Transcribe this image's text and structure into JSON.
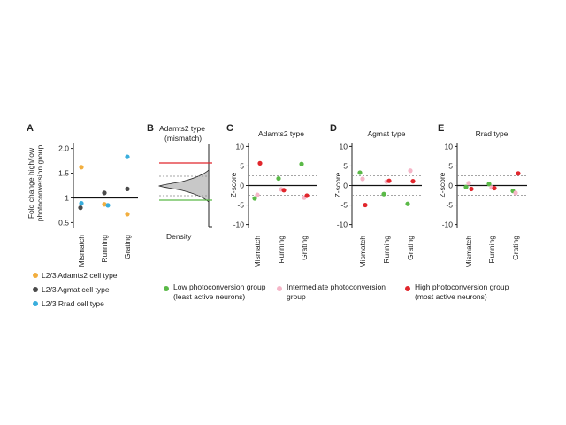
{
  "panels": {
    "A": {
      "letter": "A"
    },
    "B": {
      "letter": "B"
    },
    "C": {
      "letter": "C"
    },
    "D": {
      "letter": "D"
    },
    "E": {
      "letter": "E"
    }
  },
  "colors": {
    "adamts2": "#f2ae3e",
    "agmat": "#4a4a4a",
    "rrad": "#3aaedd",
    "low": "#5ab947",
    "intermediate": "#f5b6c8",
    "high": "#e1262c",
    "density_fill": "#c8c8c8"
  },
  "panel_b": {
    "title_line1": "Adamts2 type",
    "title_line2": "(mismatch)",
    "xlabel": "Density"
  },
  "legend_a": [
    {
      "label": "L2/3 Adamts2 cell type",
      "color_key": "adamts2"
    },
    {
      "label": "L2/3 Agmat cell type",
      "color_key": "agmat"
    },
    {
      "label": "L2/3 Rrad cell type",
      "color_key": "rrad"
    }
  ],
  "legend_groups": [
    {
      "line1": "Low photoconversion group",
      "line2": "(least active neurons)",
      "color_key": "low"
    },
    {
      "line1": "Intermediate photoconversion",
      "line2": "group",
      "color_key": "intermediate"
    },
    {
      "line1": "High photoconversion group",
      "line2": "(most active neurons)",
      "color_key": "high"
    }
  ],
  "chart_data": [
    {
      "id": "A",
      "type": "scatter",
      "title": "",
      "ylabel_line1": "Fold change high/low",
      "ylabel_line2": "photoconversion group",
      "categories": [
        "Mismatch",
        "Running",
        "Grating"
      ],
      "ylim": [
        0.4,
        2.1
      ],
      "yticks": [
        "0.5",
        "1",
        "1.5",
        "2.0"
      ],
      "reference_line": 1,
      "series": [
        {
          "name": "L2/3 Adamts2 cell type",
          "color_key": "adamts2",
          "values": [
            1.62,
            0.87,
            0.67
          ]
        },
        {
          "name": "L2/3 Agmat cell type",
          "color_key": "agmat",
          "values": [
            0.8,
            1.1,
            1.18
          ]
        },
        {
          "name": "L2/3 Rrad cell type",
          "color_key": "rrad",
          "values": [
            0.89,
            0.85,
            1.83
          ]
        }
      ]
    },
    {
      "id": "C",
      "type": "scatter",
      "title": "Adamts2 type",
      "ylabel": "Z-score",
      "categories": [
        "Mismatch",
        "Running",
        "Grating"
      ],
      "ylim": [
        -11,
        11
      ],
      "yticks": [
        "-10",
        "-5",
        "0",
        "5",
        "10"
      ],
      "dashed_lines": [
        2.5,
        -2.5
      ],
      "series": [
        {
          "name": "Low photoconversion group",
          "color_key": "low",
          "values": [
            -3.3,
            1.8,
            5.5
          ]
        },
        {
          "name": "Intermediate photoconversion group",
          "color_key": "intermediate",
          "values": [
            -2.4,
            -1.0,
            -3.1
          ]
        },
        {
          "name": "High photoconversion group",
          "color_key": "high",
          "values": [
            5.7,
            -1.2,
            -2.6
          ]
        }
      ]
    },
    {
      "id": "D",
      "type": "scatter",
      "title": "Agmat type",
      "ylabel": "Z-score",
      "categories": [
        "Mismatch",
        "Running",
        "Grating"
      ],
      "ylim": [
        -11,
        11
      ],
      "yticks": [
        "-10",
        "-5",
        "0",
        "5",
        "10"
      ],
      "dashed_lines": [
        2.5,
        -2.5
      ],
      "series": [
        {
          "name": "Low photoconversion group",
          "color_key": "low",
          "values": [
            3.3,
            -2.2,
            -4.7
          ]
        },
        {
          "name": "Intermediate photoconversion group",
          "color_key": "intermediate",
          "values": [
            1.7,
            1.0,
            3.8
          ]
        },
        {
          "name": "High photoconversion group",
          "color_key": "high",
          "values": [
            -5.0,
            1.2,
            1.1
          ]
        }
      ]
    },
    {
      "id": "E",
      "type": "scatter",
      "title": "Rrad type",
      "ylabel": "Z-score",
      "categories": [
        "Mismatch",
        "Running",
        "Grating"
      ],
      "ylim": [
        -11,
        11
      ],
      "yticks": [
        "-10",
        "-5",
        "0",
        "5",
        "10"
      ],
      "dashed_lines": [
        2.5,
        -2.5
      ],
      "series": [
        {
          "name": "Low photoconversion group",
          "color_key": "low",
          "values": [
            -0.4,
            0.4,
            -1.4
          ]
        },
        {
          "name": "Intermediate photoconversion group",
          "color_key": "intermediate",
          "values": [
            0.6,
            -0.5,
            -1.9
          ]
        },
        {
          "name": "High photoconversion group",
          "color_key": "high",
          "values": [
            -0.9,
            -0.7,
            3.1
          ]
        }
      ]
    }
  ]
}
